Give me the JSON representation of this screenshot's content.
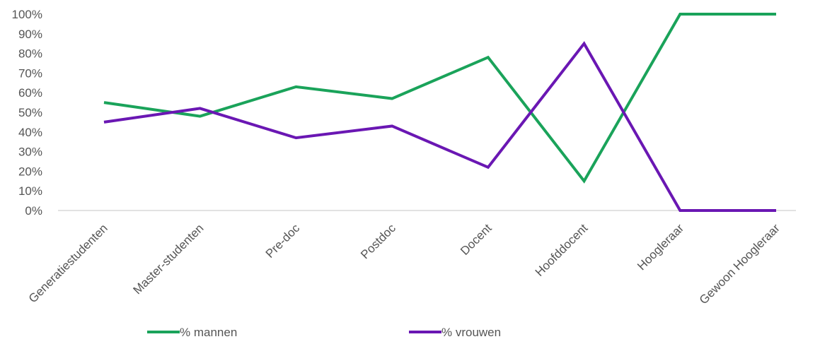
{
  "chart_data": {
    "type": "line",
    "categories": [
      "Generatiestudenten",
      "Master-studenten",
      "Pre-doc",
      "Postdoc",
      "Docent",
      "Hoofddocent",
      "Hoogleraar",
      "Gewoon Hoogleraar"
    ],
    "series": [
      {
        "name": "% mannen",
        "color": "#1aa35a",
        "values": [
          55,
          48,
          63,
          57,
          78,
          15,
          100,
          100
        ]
      },
      {
        "name": "% vrouwen",
        "color": "#6a17b3",
        "values": [
          45,
          52,
          37,
          43,
          22,
          85,
          0,
          0
        ]
      }
    ],
    "y_ticks": [
      "0%",
      "10%",
      "20%",
      "30%",
      "40%",
      "50%",
      "60%",
      "70%",
      "80%",
      "90%",
      "100%"
    ],
    "ylim": [
      0,
      100
    ],
    "grid": false,
    "legend_position": "bottom"
  }
}
